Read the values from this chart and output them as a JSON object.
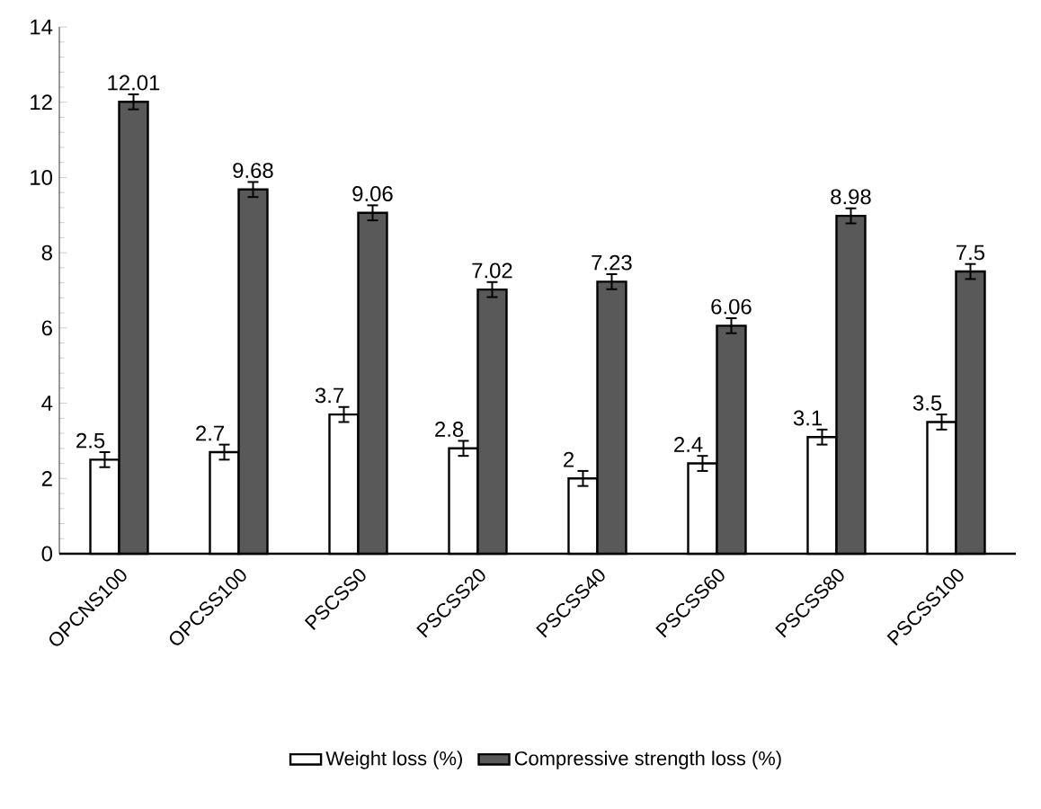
{
  "chart_data": {
    "type": "bar",
    "categories": [
      "OPCNS100",
      "OPCSS100",
      "PSCSS0",
      "PSCSS20",
      "PSCSS40",
      "PSCSS60",
      "PSCSS80",
      "PSCSS100"
    ],
    "series": [
      {
        "name": "Weight loss (%)",
        "color": "#ffffff",
        "values": [
          2.5,
          2.7,
          3.7,
          2.8,
          2,
          2.4,
          3.1,
          3.5
        ],
        "errors": [
          0.2,
          0.2,
          0.2,
          0.2,
          0.2,
          0.2,
          0.2,
          0.2
        ]
      },
      {
        "name": "Compressive strength loss (%)",
        "color": "#595959",
        "values": [
          12.01,
          9.68,
          9.06,
          7.02,
          7.23,
          6.06,
          8.98,
          7.5
        ],
        "errors": [
          0.2,
          0.2,
          0.2,
          0.2,
          0.2,
          0.2,
          0.2,
          0.2
        ]
      }
    ],
    "ylim": [
      0,
      14
    ],
    "yticks": [
      0,
      2,
      4,
      6,
      8,
      10,
      12,
      14
    ],
    "data_labels": true,
    "grid": false,
    "legend": "bottom"
  }
}
